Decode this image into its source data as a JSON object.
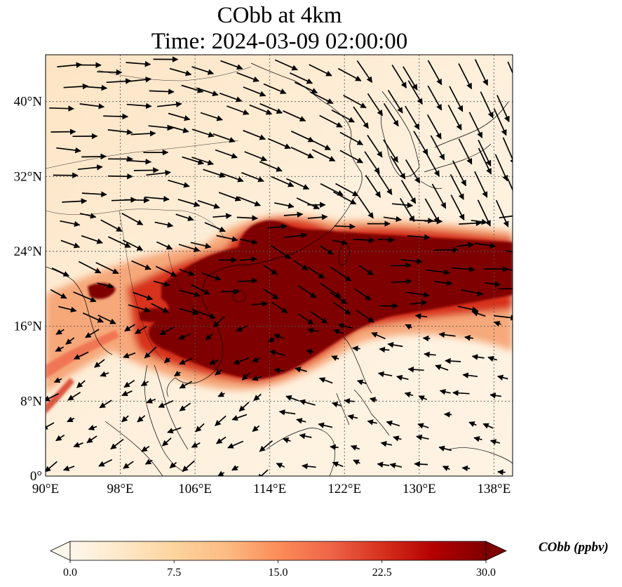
{
  "title": {
    "line1": "CObb at 4km",
    "line2": "Time: 2024-03-09 02:00:00"
  },
  "map": {
    "lon_range": [
      90,
      140
    ],
    "lat_range": [
      0,
      45
    ],
    "lon_ticks": [
      {
        "value": 90,
        "label": "90°E"
      },
      {
        "value": 98,
        "label": "98°E"
      },
      {
        "value": 106,
        "label": "106°E"
      },
      {
        "value": 114,
        "label": "114°E"
      },
      {
        "value": 122,
        "label": "122°E"
      },
      {
        "value": 130,
        "label": "130°E"
      },
      {
        "value": 138,
        "label": "138°E"
      }
    ],
    "lat_ticks": [
      {
        "value": 0,
        "label": "0°"
      },
      {
        "value": 8,
        "label": "8°N"
      },
      {
        "value": 16,
        "label": "16°N"
      },
      {
        "value": 24,
        "label": "24°N"
      },
      {
        "value": 32,
        "label": "32°N"
      },
      {
        "value": 40,
        "label": "40°N"
      }
    ],
    "gridlines": true,
    "plume_color": "#7f0000"
  },
  "colorbar": {
    "label": "CObb (ppbv)",
    "min": 0,
    "max": 30,
    "extend": "both",
    "tick_labels": [
      "0.0",
      "7.5",
      "15.0",
      "22.5",
      "30.0"
    ],
    "colormap": [
      "#fff7ec",
      "#fee8c8",
      "#fdd49e",
      "#fdbb84",
      "#fc8d59",
      "#ef6548",
      "#d7301f",
      "#b30000",
      "#7f0000"
    ]
  }
}
